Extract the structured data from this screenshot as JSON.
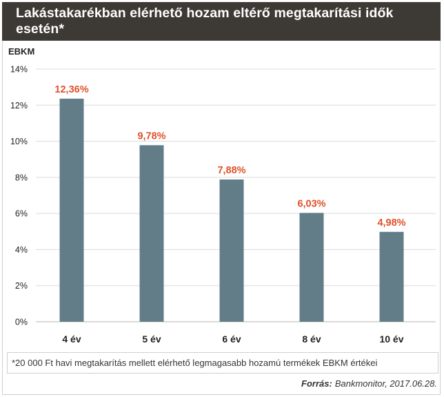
{
  "title": "Lakástakarékban elérhető hozam eltérő megtakarítási idők esetén*",
  "footnote": "*20 000 Ft havi megtakarítás mellett elérhető legmagasabb hozamú termékek EBKM értékei",
  "source": {
    "label": "Forrás:",
    "text": "Bankmonitor, 2017.06.28."
  },
  "colors": {
    "bar": "#627d88",
    "value_label": "#e0502a",
    "title_bg": "#3d3935"
  },
  "chart_data": {
    "type": "bar",
    "ylabel": "EBKM",
    "categories": [
      "4 év",
      "5 év",
      "6 év",
      "8 év",
      "10 év"
    ],
    "values": [
      12.36,
      9.78,
      7.88,
      6.03,
      4.98
    ],
    "value_labels": [
      "12,36%",
      "9,78%",
      "7,88%",
      "6,03%",
      "4,98%"
    ],
    "ylim": [
      0,
      14
    ],
    "yticks": [
      0,
      2,
      4,
      6,
      8,
      10,
      12,
      14
    ],
    "ytick_labels": [
      "0%",
      "2%",
      "4%",
      "6%",
      "8%",
      "10%",
      "12%",
      "14%"
    ],
    "grid": true
  }
}
